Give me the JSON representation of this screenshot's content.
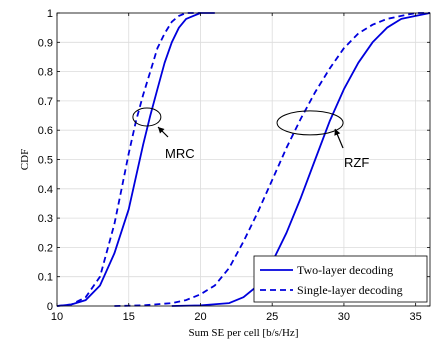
{
  "chart_data": {
    "type": "line",
    "xlabel": "Sum SE per cell [b/s/Hz]",
    "ylabel": "CDF",
    "xlim": [
      10,
      36
    ],
    "ylim": [
      0,
      1
    ],
    "x_ticks": [
      "10",
      "15",
      "20",
      "25",
      "30",
      "35"
    ],
    "y_ticks": [
      "0",
      "0.1",
      "0.2",
      "0.3",
      "0.4",
      "0.5",
      "0.6",
      "0.7",
      "0.8",
      "0.9",
      "1"
    ],
    "grid": true,
    "legend_position": "bottom-right",
    "line_color": "#0000dd",
    "series": [
      {
        "name": "Two-layer decoding",
        "style": "solid",
        "group": "MRC",
        "x": [
          10,
          11,
          12,
          13,
          14,
          15,
          15.5,
          16,
          16.5,
          17,
          17.5,
          18,
          18.5,
          19,
          19.5,
          20,
          21
        ],
        "y": [
          0,
          0.005,
          0.02,
          0.07,
          0.18,
          0.33,
          0.44,
          0.55,
          0.65,
          0.74,
          0.83,
          0.9,
          0.95,
          0.98,
          0.99,
          1,
          1
        ]
      },
      {
        "name": "Single-layer decoding",
        "style": "dashed",
        "group": "MRC",
        "x": [
          10,
          11,
          12,
          13,
          14,
          14.5,
          15,
          15.5,
          16,
          16.5,
          17,
          17.5,
          18,
          18.5,
          19,
          20
        ],
        "y": [
          0,
          0.005,
          0.03,
          0.1,
          0.28,
          0.4,
          0.52,
          0.63,
          0.72,
          0.8,
          0.88,
          0.93,
          0.97,
          0.99,
          1,
          1
        ]
      },
      {
        "name": "Two-layer decoding",
        "style": "solid",
        "group": "RZF",
        "x": [
          18,
          20,
          22,
          23,
          24,
          25,
          26,
          27,
          28,
          29,
          30,
          31,
          32,
          33,
          34,
          35,
          36
        ],
        "y": [
          0,
          0.002,
          0.01,
          0.03,
          0.07,
          0.15,
          0.25,
          0.37,
          0.5,
          0.63,
          0.74,
          0.83,
          0.9,
          0.95,
          0.98,
          0.99,
          1
        ]
      },
      {
        "name": "Single-layer decoding",
        "style": "dashed",
        "group": "RZF",
        "x": [
          14,
          16,
          18,
          19,
          20,
          21,
          22,
          23,
          24,
          25,
          26,
          27,
          28,
          29,
          30,
          31,
          32,
          33,
          34,
          35,
          36
        ],
        "y": [
          0,
          0.002,
          0.01,
          0.02,
          0.04,
          0.07,
          0.13,
          0.22,
          0.32,
          0.43,
          0.54,
          0.64,
          0.73,
          0.81,
          0.88,
          0.93,
          0.96,
          0.98,
          0.99,
          1,
          1
        ]
      }
    ],
    "annotations": [
      {
        "label": "MRC",
        "target_x": 16.3,
        "target_y": 0.645
      },
      {
        "label": "RZF",
        "target_x": 27.5,
        "target_y": 0.625
      }
    ],
    "legend": [
      {
        "label": "Two-layer decoding",
        "style": "solid"
      },
      {
        "label": "Single-layer decoding",
        "style": "dashed"
      }
    ]
  }
}
